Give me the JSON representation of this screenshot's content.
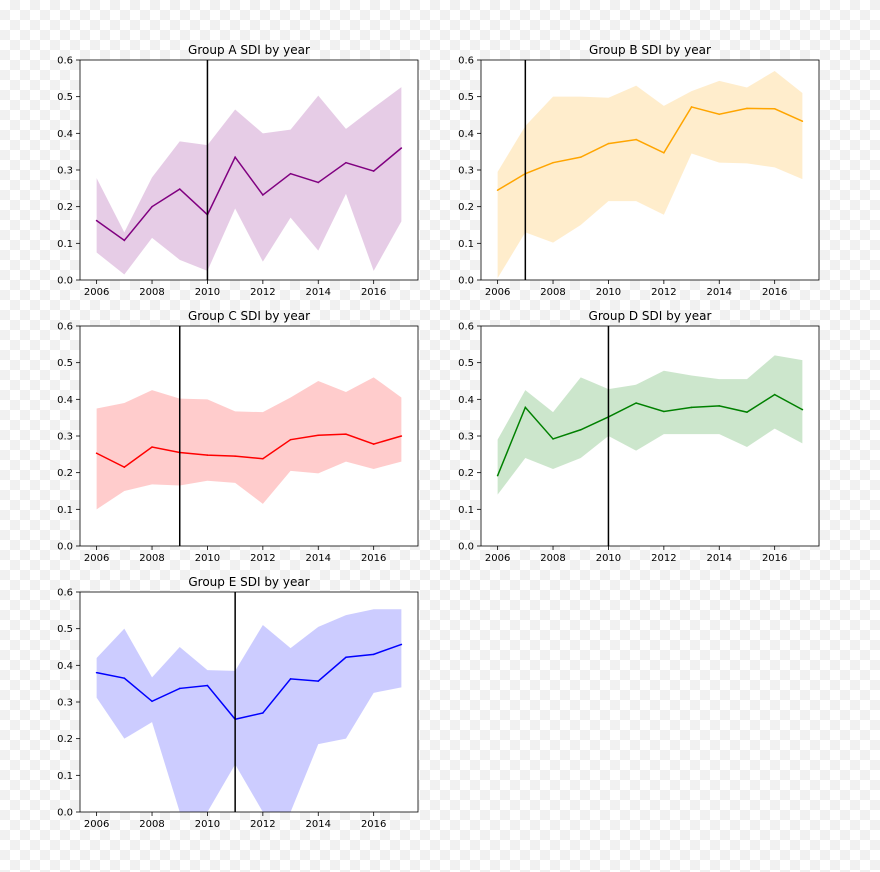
{
  "chart_data": [
    {
      "type": "line",
      "title": "Group A SDI by year",
      "color": "#800080",
      "x": [
        2006,
        2007,
        2008,
        2009,
        2010,
        2011,
        2012,
        2013,
        2014,
        2015,
        2016,
        2017
      ],
      "mean": [
        0.162,
        0.108,
        0.2,
        0.248,
        0.178,
        0.335,
        0.232,
        0.29,
        0.266,
        0.32,
        0.297,
        0.36
      ],
      "lower": [
        0.075,
        0.015,
        0.115,
        0.055,
        0.025,
        0.195,
        0.05,
        0.17,
        0.08,
        0.235,
        0.025,
        0.16
      ],
      "upper": [
        0.278,
        0.13,
        0.28,
        0.378,
        0.368,
        0.465,
        0.4,
        0.41,
        0.503,
        0.412,
        0.47,
        0.526
      ],
      "vline": 2010,
      "xticks": [
        "2006",
        "2008",
        "2010",
        "2012",
        "2014",
        "2016"
      ],
      "yticks": [
        "0.0",
        "0.1",
        "0.2",
        "0.3",
        "0.4",
        "0.5",
        "0.6"
      ],
      "xlim": [
        2005.4,
        2017.6
      ],
      "ylim": [
        0,
        0.6
      ]
    },
    {
      "type": "line",
      "title": "Group B SDI by year",
      "color": "#ffa500",
      "x": [
        2006,
        2007,
        2008,
        2009,
        2010,
        2011,
        2012,
        2013,
        2014,
        2015,
        2016,
        2017
      ],
      "mean": [
        0.245,
        0.29,
        0.32,
        0.335,
        0.372,
        0.383,
        0.347,
        0.472,
        0.452,
        0.468,
        0.467,
        0.433
      ],
      "lower": [
        0.005,
        0.13,
        0.102,
        0.15,
        0.215,
        0.215,
        0.178,
        0.345,
        0.32,
        0.318,
        0.307,
        0.275
      ],
      "upper": [
        0.295,
        0.42,
        0.5,
        0.5,
        0.497,
        0.53,
        0.475,
        0.515,
        0.543,
        0.525,
        0.57,
        0.51
      ],
      "vline": 2007,
      "xticks": [
        "2006",
        "2008",
        "2010",
        "2012",
        "2014",
        "2016"
      ],
      "yticks": [
        "0.0",
        "0.1",
        "0.2",
        "0.3",
        "0.4",
        "0.5",
        "0.6"
      ],
      "xlim": [
        2005.4,
        2017.6
      ],
      "ylim": [
        0,
        0.6
      ]
    },
    {
      "type": "line",
      "title": "Group C SDI by year",
      "color": "#ff0000",
      "x": [
        2006,
        2007,
        2008,
        2009,
        2010,
        2011,
        2012,
        2013,
        2014,
        2015,
        2016,
        2017
      ],
      "mean": [
        0.253,
        0.215,
        0.27,
        0.255,
        0.248,
        0.245,
        0.238,
        0.29,
        0.302,
        0.305,
        0.278,
        0.3
      ],
      "lower": [
        0.1,
        0.15,
        0.168,
        0.165,
        0.178,
        0.172,
        0.115,
        0.205,
        0.198,
        0.23,
        0.21,
        0.23
      ],
      "upper": [
        0.375,
        0.39,
        0.425,
        0.402,
        0.4,
        0.367,
        0.365,
        0.405,
        0.45,
        0.42,
        0.46,
        0.405
      ],
      "vline": 2009,
      "xticks": [
        "2006",
        "2008",
        "2010",
        "2012",
        "2014",
        "2016"
      ],
      "yticks": [
        "0.0",
        "0.1",
        "0.2",
        "0.3",
        "0.4",
        "0.5",
        "0.6"
      ],
      "xlim": [
        2005.4,
        2017.6
      ],
      "ylim": [
        0,
        0.6
      ]
    },
    {
      "type": "line",
      "title": "Group D SDI by year",
      "color": "#008000",
      "x": [
        2006,
        2007,
        2008,
        2009,
        2010,
        2011,
        2012,
        2013,
        2014,
        2015,
        2016,
        2017
      ],
      "mean": [
        0.192,
        0.378,
        0.292,
        0.317,
        0.352,
        0.39,
        0.367,
        0.378,
        0.382,
        0.365,
        0.413,
        0.372
      ],
      "lower": [
        0.14,
        0.24,
        0.21,
        0.24,
        0.3,
        0.26,
        0.305,
        0.305,
        0.305,
        0.27,
        0.32,
        0.28
      ],
      "upper": [
        0.29,
        0.425,
        0.365,
        0.46,
        0.428,
        0.44,
        0.478,
        0.465,
        0.455,
        0.455,
        0.52,
        0.507
      ],
      "vline": 2010,
      "xticks": [
        "2006",
        "2008",
        "2010",
        "2012",
        "2014",
        "2016"
      ],
      "yticks": [
        "0.0",
        "0.1",
        "0.2",
        "0.3",
        "0.4",
        "0.5",
        "0.6"
      ],
      "xlim": [
        2005.4,
        2017.6
      ],
      "ylim": [
        0,
        0.6
      ]
    },
    {
      "type": "line",
      "title": "Group E SDI by year",
      "color": "#0000ff",
      "x": [
        2006,
        2007,
        2008,
        2009,
        2010,
        2011,
        2012,
        2013,
        2014,
        2015,
        2016,
        2017
      ],
      "mean": [
        0.38,
        0.365,
        0.302,
        0.337,
        0.345,
        0.253,
        0.27,
        0.363,
        0.357,
        0.422,
        0.43,
        0.457
      ],
      "lower": [
        0.312,
        0.2,
        0.245,
        0.0,
        0.0,
        0.13,
        0.0,
        0.0,
        0.185,
        0.2,
        0.325,
        0.34
      ],
      "upper": [
        0.42,
        0.5,
        0.367,
        0.45,
        0.387,
        0.385,
        0.51,
        0.447,
        0.505,
        0.537,
        0.553,
        0.553
      ],
      "vline": 2011,
      "xticks": [
        "2006",
        "2008",
        "2010",
        "2012",
        "2014",
        "2016"
      ],
      "yticks": [
        "0.0",
        "0.1",
        "0.2",
        "0.3",
        "0.4",
        "0.5",
        "0.6"
      ],
      "xlim": [
        2005.4,
        2017.6
      ],
      "ylim": [
        0,
        0.6
      ]
    }
  ]
}
